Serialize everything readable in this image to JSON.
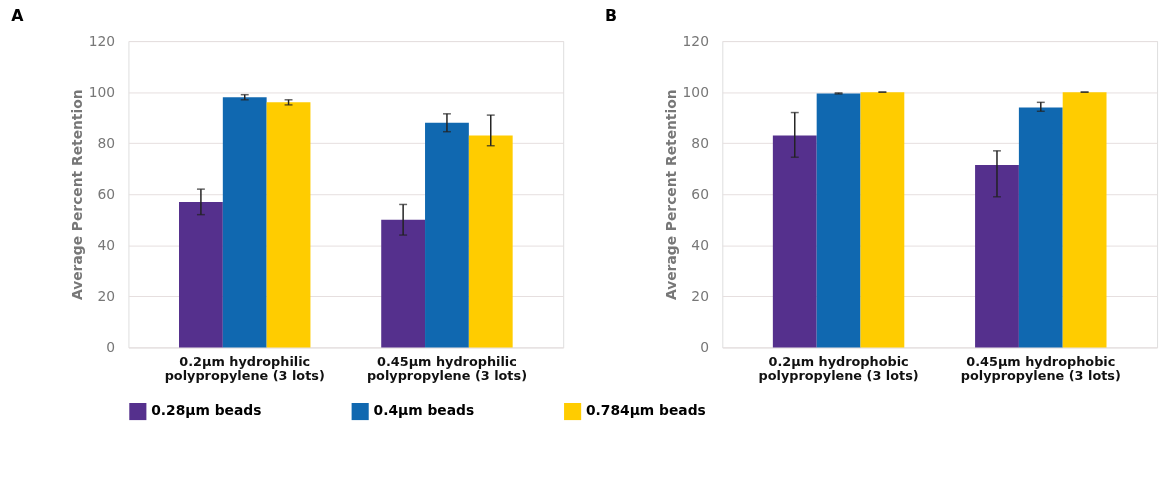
{
  "chart_data": [
    {
      "type": "bar",
      "title": "A",
      "ylabel": "Average Percent Retention",
      "categories": [
        "0.2µm hydrophilic polypropylene (3 lots)",
        "0.45µm hydrophilic polypropylene (3 lots)"
      ],
      "series": [
        {
          "name": "0.28µm beads",
          "color": "#55308d",
          "values": [
            57,
            50
          ],
          "errors": [
            [
              52,
              62
            ],
            [
              44,
              56
            ]
          ]
        },
        {
          "name": "0.4µm beads",
          "color": "#1068b0",
          "values": [
            98,
            88
          ],
          "errors": [
            [
              97,
              99
            ],
            [
              84.5,
              91.5
            ]
          ]
        },
        {
          "name": "0.784µm beads",
          "color": "#ffcc00",
          "values": [
            96,
            83
          ],
          "errors": [
            [
              95,
              97
            ],
            [
              79,
              91
            ]
          ]
        }
      ],
      "ylim": [
        0,
        120
      ],
      "yticks": [
        0,
        20,
        40,
        60,
        80,
        100,
        120
      ],
      "grid": "y",
      "legend": "bottom"
    },
    {
      "type": "bar",
      "title": "B",
      "ylabel": "Average Percent Retention",
      "categories": [
        "0.2µm hydrophobic polypropylene (3 lots)",
        "0.45µm hydrophobic polypropylene (3 lots)"
      ],
      "series": [
        {
          "name": "0.28µm beads",
          "color": "#55308d",
          "values": [
            83,
            71.5
          ],
          "errors": [
            [
              74.5,
              92
            ],
            [
              59,
              77
            ]
          ]
        },
        {
          "name": "0.4µm beads",
          "color": "#1068b0",
          "values": [
            99.5,
            94
          ],
          "errors": [
            [
              99.3,
              99.7
            ],
            [
              92.5,
              96
            ]
          ]
        },
        {
          "name": "0.784µm beads",
          "color": "#ffcc00",
          "values": [
            100,
            100
          ],
          "errors": [
            [
              100,
              100
            ],
            [
              100,
              100
            ]
          ]
        }
      ],
      "ylim": [
        0,
        120
      ],
      "yticks": [
        0,
        20,
        40,
        60,
        80,
        100,
        120
      ],
      "grid": "y",
      "legend": "bottom"
    }
  ]
}
